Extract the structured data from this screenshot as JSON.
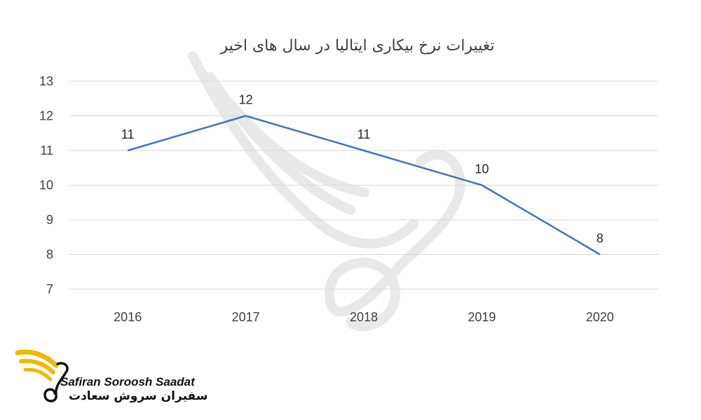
{
  "colors": {
    "series": "#4472c4",
    "grid": "#d9d9d9",
    "logo_wing": "#f2b705"
  },
  "logo": {
    "name_en": "Safiran Soroosh Saadat",
    "name_fa": "سفیران سروش سعادت"
  },
  "chart_data": {
    "type": "line",
    "title": "تغییرات نرخ بیکاری ایتالیا در سال های اخیر",
    "categories": [
      "2016",
      "2017",
      "2018",
      "2019",
      "2020"
    ],
    "series": [
      {
        "values": [
          11,
          12,
          11,
          10,
          8
        ]
      }
    ],
    "data_labels": [
      "11",
      "12",
      "11",
      "10",
      "8"
    ],
    "ylim": [
      7,
      13
    ],
    "yticks": [
      "7",
      "8",
      "9",
      "10",
      "11",
      "12",
      "13"
    ],
    "xlabel": "",
    "ylabel": "",
    "grid": true,
    "legend": "none"
  }
}
